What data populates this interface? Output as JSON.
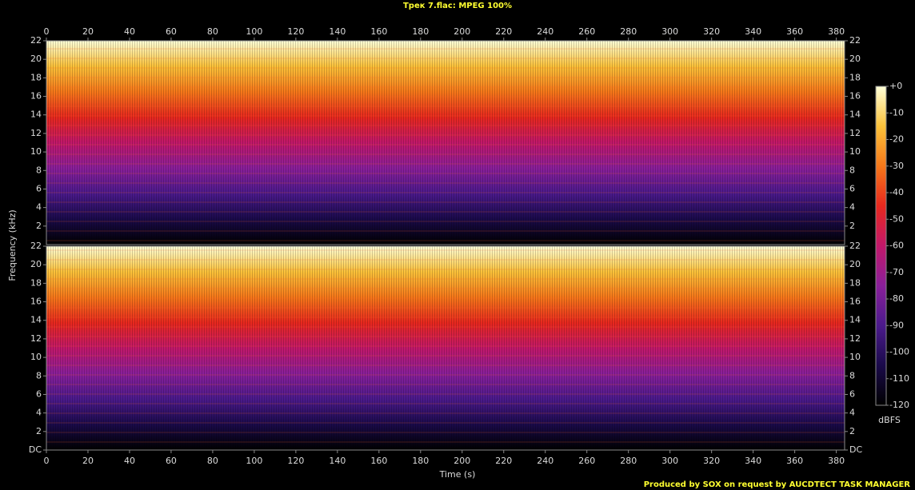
{
  "chart_data": {
    "type": "spectrogram",
    "title": "Трек 7.flac: MPEG 100%",
    "x_label": "Time (s)",
    "y_label": "Frequency (kHz)",
    "xlim": [
      0,
      384
    ],
    "xticks": [
      0,
      20,
      40,
      60,
      80,
      100,
      120,
      140,
      160,
      180,
      200,
      220,
      240,
      260,
      280,
      300,
      320,
      340,
      360,
      380
    ],
    "panels": [
      {
        "ylim": [
          0,
          22
        ],
        "yticks": [
          2,
          4,
          6,
          8,
          10,
          12,
          14,
          16,
          18,
          20,
          22
        ]
      },
      {
        "ylim": [
          0,
          22
        ],
        "yticks": [
          {
            "value": 0,
            "label": "DC"
          },
          2,
          4,
          6,
          8,
          10,
          12,
          14,
          16,
          18,
          20,
          22
        ]
      }
    ],
    "colorbar": {
      "label": "dBFS",
      "lim": [
        -120,
        0
      ],
      "ticks": [
        {
          "value": 0,
          "label": "+0"
        },
        -10,
        -20,
        -30,
        -40,
        -50,
        -60,
        -70,
        -80,
        -90,
        -100,
        -110,
        -120
      ],
      "colormap": [
        "#000000",
        "#1a0a4a",
        "#4b1a8c",
        "#8a1f9a",
        "#c2186a",
        "#e8281e",
        "#f6781a",
        "#fbc23a",
        "#ffffd8"
      ]
    },
    "footer": "Produced by SOX on request by AUCDTECT TASK MANAGER"
  }
}
